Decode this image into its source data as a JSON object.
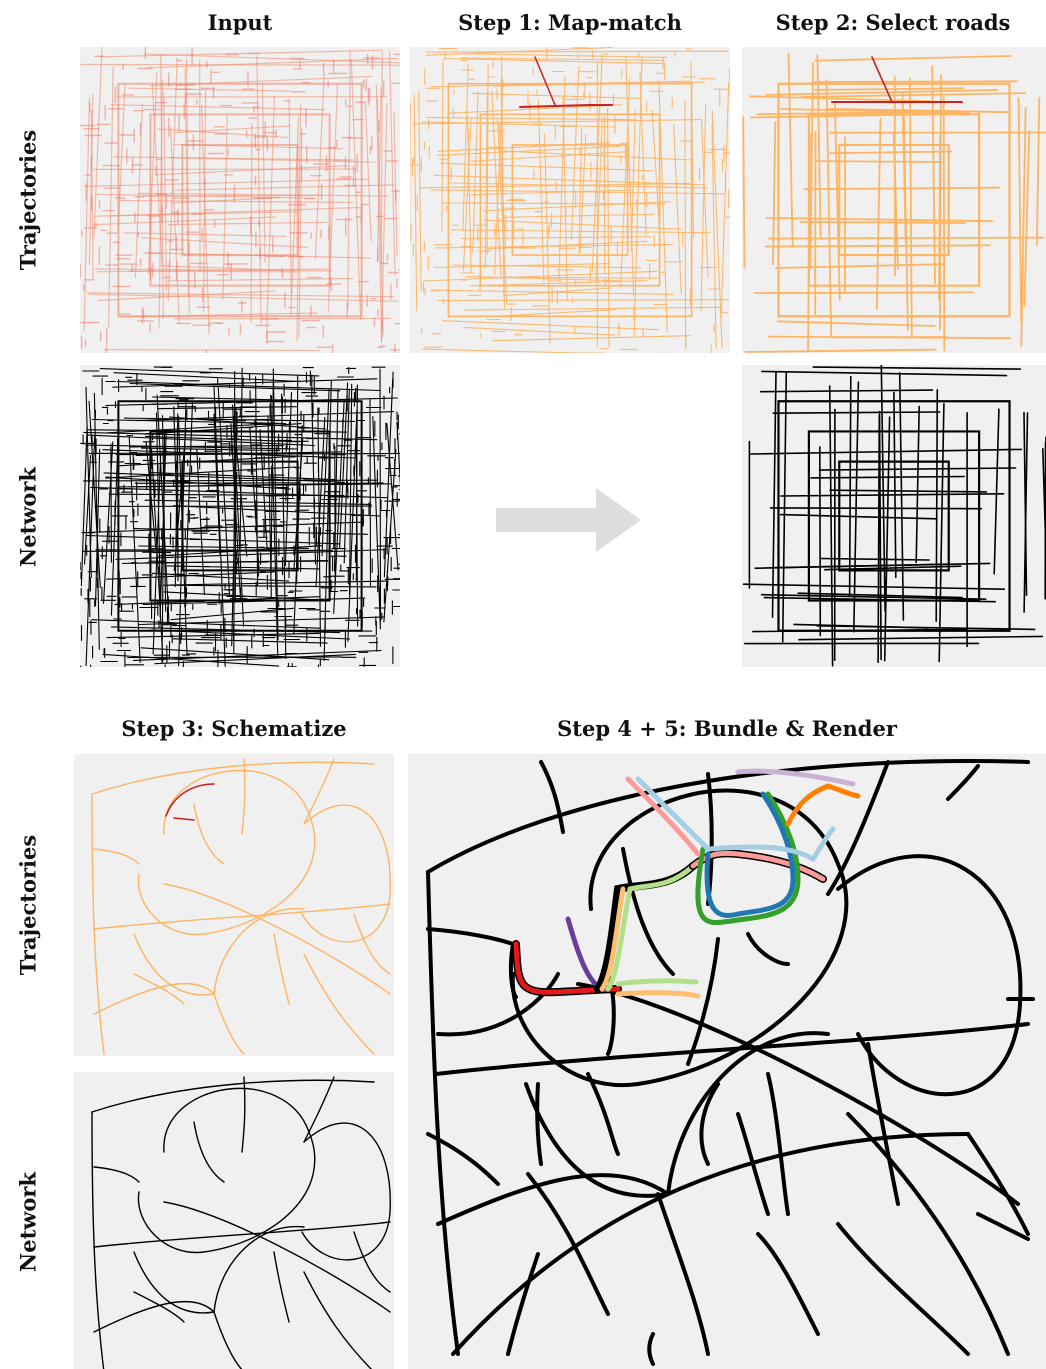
{
  "columns": {
    "input": "Input",
    "step1": "Step 1: Map-match",
    "step2": "Step 2: Select roads",
    "step3": "Step 3: Schematize",
    "step45": "Step 4 + 5: Bundle & Render"
  },
  "rows": {
    "trajectories_top": "Trajectories",
    "network_top": "Network",
    "trajectories_bottom": "Trajectories",
    "network_bottom": "Network"
  },
  "colors": {
    "panel_bg": "#f0f0f0",
    "trajectory_input": "#f08a6a",
    "trajectory_orange": "#fdb463",
    "highlight_red": "#cc1f1f",
    "network": "#000000",
    "arrow": "#dddddd",
    "route_red": "#e31a1c",
    "route_purple": "#6a3d9a",
    "route_light_orange": "#fdbf6f",
    "route_light_green": "#b2df8a",
    "route_green": "#33a02c",
    "route_blue": "#1f78b4",
    "route_pink": "#fb9a99",
    "route_light_blue": "#a6cee3",
    "route_orange": "#ff7f00",
    "route_lavender": "#cab2d6"
  }
}
